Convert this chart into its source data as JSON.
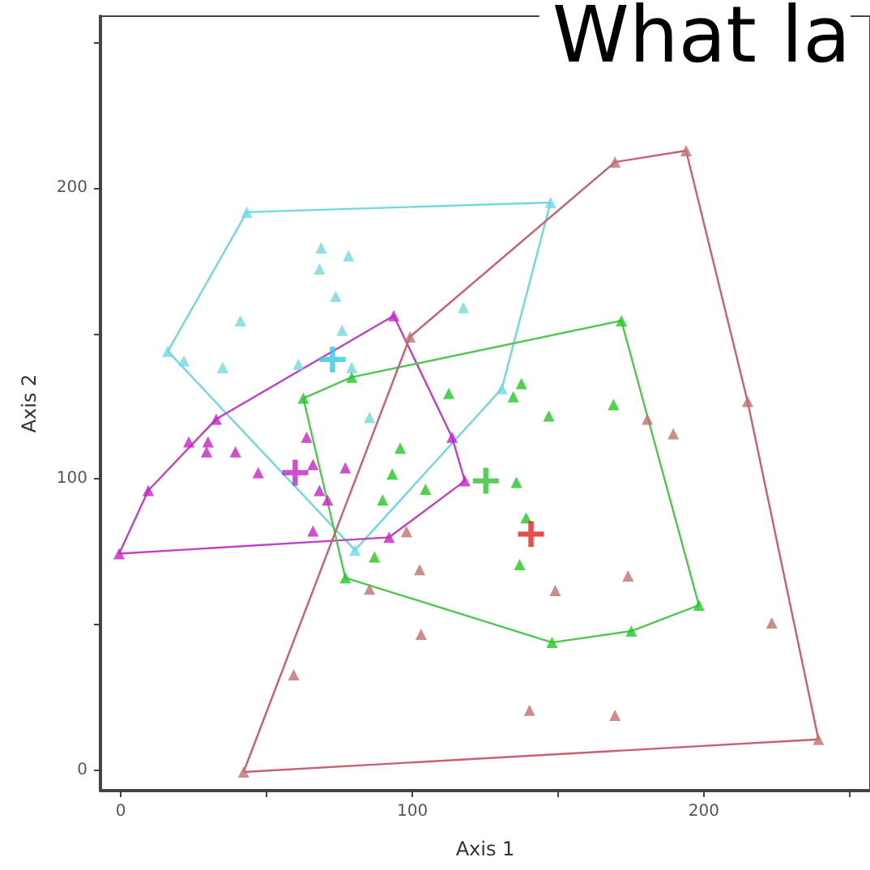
{
  "chart_data": {
    "type": "scatter",
    "title": "What la",
    "xlabel": "Axis 1",
    "ylabel": "Axis 2",
    "xlim": [
      -7,
      257
    ],
    "ylim": [
      -7,
      259
    ],
    "xticks": [
      0,
      {
        "value": 50,
        "label": null
      },
      100,
      {
        "value": 150,
        "label": null
      },
      200,
      {
        "value": 250,
        "label": null
      }
    ],
    "yticks": [
      0,
      {
        "value": 50,
        "label": null
      },
      100,
      {
        "value": 150,
        "label": null
      },
      200,
      {
        "value": 250,
        "label": null
      }
    ],
    "grid": false,
    "marker": "triangle",
    "series": [
      {
        "type": "line",
        "marker": "none",
        "color": "#70d8e0",
        "x": [
          16.1,
          43.2,
          147.4
        ],
        "values": [
          143.9,
          191.7,
          195
        ]
      },
      {
        "type": "line",
        "marker": "none",
        "color": "#70d8e0",
        "x": [
          16.1,
          80.3,
          130.7,
          147.4
        ],
        "values": [
          143.9,
          75.6,
          131.1,
          195
        ]
      },
      {
        "type": "line",
        "marker": "none",
        "color": "#c040c8",
        "x": [
          -0.6,
          9.4,
          32.7,
          93.6,
          113.6,
          118
        ],
        "values": [
          74.4,
          96.1,
          120.6,
          156.1,
          114.4,
          99.4
        ]
      },
      {
        "type": "line",
        "marker": "none",
        "color": "#c040c8",
        "x": [
          -0.6,
          92,
          118
        ],
        "values": [
          74.4,
          80,
          99.4
        ]
      },
      {
        "type": "line",
        "marker": "none",
        "color": "#50c850",
        "x": [
          62.6,
          79.2,
          171.7,
          198.3
        ],
        "values": [
          127.8,
          135,
          154.4,
          56.7
        ]
      },
      {
        "type": "line",
        "marker": "none",
        "color": "#50c850",
        "x": [
          62.6,
          77,
          147.9,
          175.1,
          198.3
        ],
        "values": [
          127.8,
          66.1,
          43.9,
          47.8,
          56.7
        ]
      },
      {
        "type": "line",
        "marker": "none",
        "color": "#c86070",
        "x": [
          42.1,
          99.2,
          169.5,
          193.9,
          215,
          239.3
        ],
        "values": [
          -0.6,
          148.9,
          208.9,
          212.8,
          126.7,
          10.6
        ]
      },
      {
        "type": "line",
        "marker": "none",
        "color": "#c86070",
        "x": [
          42.1,
          239.3
        ],
        "values": [
          -0.6,
          10.6
        ]
      },
      {
        "color": "#70d8e0",
        "x": [
          16.1,
          43.2,
          147.4,
          130.7,
          80.3,
          68.7,
          78.1,
          68.1,
          73.7,
          41,
          75.9,
          21.6,
          34.9,
          60.9,
          79.2,
          85.3,
          117.5
        ],
        "values": [
          143.9,
          191.7,
          195,
          131.1,
          75.6,
          179.4,
          176.7,
          172.2,
          162.8,
          154.4,
          151.1,
          140.6,
          138.3,
          139.4,
          138.3,
          121.1,
          158.9
        ]
      },
      {
        "color": "#c820c8",
        "x": [
          -0.6,
          9.4,
          32.7,
          93.6,
          113.6,
          118,
          92,
          23.3,
          29.9,
          29.4,
          39.3,
          47.1,
          63.7,
          65.9,
          77,
          68.1,
          70.9,
          65.9
        ],
        "values": [
          74.4,
          96.1,
          120.6,
          156.1,
          114.4,
          99.4,
          80,
          112.8,
          112.8,
          109.4,
          109.4,
          102.2,
          114.4,
          105,
          103.9,
          96.1,
          92.8,
          82.2
        ]
      },
      {
        "color": "#20c820",
        "x": [
          62.6,
          79.2,
          171.7,
          198.3,
          175.1,
          147.9,
          77,
          112.5,
          137.4,
          134.6,
          146.8,
          169,
          95.8,
          93.1,
          104.5,
          135.7,
          89.8,
          87,
          139,
          136.8
        ],
        "values": [
          127.8,
          135,
          154.4,
          56.7,
          47.8,
          43.9,
          66.1,
          129.4,
          132.8,
          128.3,
          121.7,
          125.6,
          110.6,
          101.7,
          96.5,
          98.9,
          92.8,
          73.3,
          86.7,
          70.6
        ]
      },
      {
        "color": "#c07070",
        "x": [
          42.1,
          99.2,
          169.5,
          193.9,
          215,
          239.3,
          59.3,
          85.3,
          102.5,
          103,
          98,
          149,
          174,
          223.3,
          140.2,
          169.5,
          180.6,
          189.5
        ],
        "values": [
          -0.6,
          148.9,
          208.9,
          212.8,
          126.7,
          10.6,
          32.8,
          62.2,
          68.9,
          46.7,
          82,
          61.7,
          66.7,
          50.6,
          20.6,
          18.9,
          120.6,
          115.6
        ]
      },
      {
        "marker": "cross",
        "color": "#30c8e0",
        "x": [
          72.6
        ],
        "values": [
          141.1
        ]
      },
      {
        "marker": "cross",
        "color": "#c020c8",
        "x": [
          59.8
        ],
        "values": [
          102.2
        ]
      },
      {
        "marker": "cross",
        "color": "#30c030",
        "x": [
          125.2
        ],
        "values": [
          99.4
        ]
      },
      {
        "marker": "cross",
        "color": "#e02020",
        "x": [
          140.7
        ],
        "values": [
          81.1
        ]
      }
    ]
  }
}
